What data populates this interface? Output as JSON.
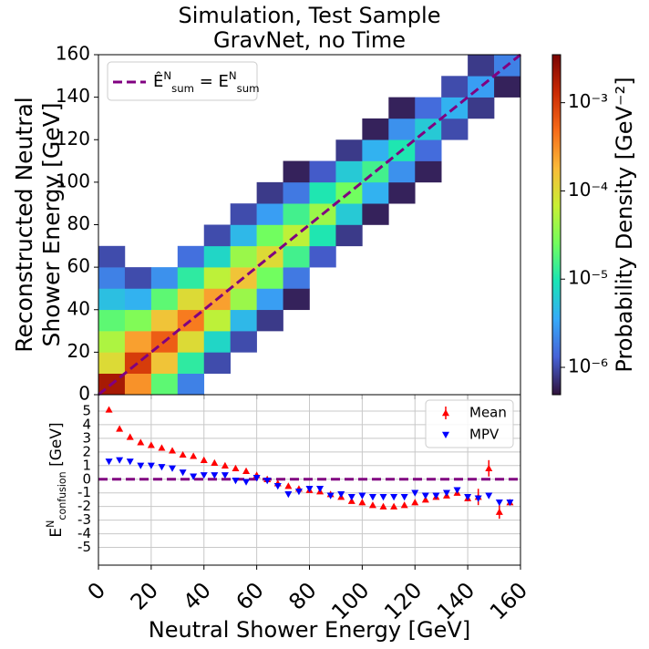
{
  "chart_data": [
    {
      "type": "heatmap",
      "title": [
        "Simulation, Test Sample",
        "GravNet, no Time"
      ],
      "ylabel": [
        "Reconstructed Neutral",
        "Shower Energy [GeV]"
      ],
      "xlim": [
        0,
        160
      ],
      "ylim": [
        0,
        160
      ],
      "xticks": [
        0,
        20,
        40,
        60,
        80,
        100,
        120,
        140,
        160
      ],
      "yticks": [
        0,
        20,
        40,
        60,
        80,
        100,
        120,
        140,
        160
      ],
      "x_bins": [
        0,
        10,
        20,
        30,
        40,
        50,
        60,
        70,
        80,
        90,
        100,
        110,
        120,
        130,
        140,
        150,
        160
      ],
      "y_bins": [
        0,
        10,
        20,
        30,
        40,
        50,
        60,
        70,
        80,
        90,
        100,
        110,
        120,
        130,
        140,
        150,
        160
      ],
      "z": [
        [
          0.002,
          0.0003,
          2e-05,
          2e-06,
          null,
          null,
          null,
          null,
          null,
          null,
          null,
          null,
          null,
          null,
          null,
          null
        ],
        [
          0.0001,
          0.001,
          0.00015,
          1.2e-05,
          1e-06,
          null,
          null,
          null,
          null,
          null,
          null,
          null,
          null,
          null,
          null,
          null
        ],
        [
          5e-05,
          0.00025,
          0.0006,
          0.0001,
          7.5e-06,
          1e-06,
          null,
          null,
          null,
          null,
          null,
          null,
          null,
          null,
          null,
          null
        ],
        [
          2e-05,
          3e-05,
          0.00015,
          0.0004,
          6e-05,
          4.5e-06,
          8e-07,
          null,
          null,
          null,
          null,
          null,
          null,
          null,
          null,
          null
        ],
        [
          5e-06,
          4e-06,
          2e-05,
          0.0001,
          0.00025,
          4e-05,
          3e-06,
          6e-07,
          null,
          null,
          null,
          null,
          null,
          null,
          null,
          null
        ],
        [
          2e-06,
          1e-06,
          2.5e-06,
          1.2e-05,
          6e-05,
          0.00015,
          2.5e-05,
          1.8e-06,
          null,
          null,
          null,
          null,
          null,
          null,
          null,
          null
        ],
        [
          1e-06,
          null,
          null,
          1.6e-06,
          7.5e-06,
          4e-05,
          0.0001,
          1.5e-05,
          1.2e-06,
          null,
          null,
          null,
          null,
          null,
          null,
          null
        ],
        [
          null,
          null,
          null,
          null,
          1e-06,
          4.5e-06,
          2.5e-05,
          6e-05,
          1e-05,
          8e-07,
          null,
          null,
          null,
          null,
          null,
          null
        ],
        [
          null,
          null,
          null,
          null,
          null,
          1e-06,
          3e-06,
          1.5e-05,
          4e-05,
          6e-06,
          6e-07,
          null,
          null,
          null,
          null,
          null
        ],
        [
          null,
          null,
          null,
          null,
          null,
          null,
          8e-07,
          1.8e-06,
          1e-05,
          2.5e-05,
          4e-06,
          6e-07,
          null,
          null,
          null,
          null
        ],
        [
          null,
          null,
          null,
          null,
          null,
          null,
          null,
          6e-07,
          1.2e-06,
          6e-06,
          1.5e-05,
          2.5e-06,
          6e-07,
          null,
          null,
          null
        ],
        [
          null,
          null,
          null,
          null,
          null,
          null,
          null,
          null,
          null,
          8e-07,
          4e-06,
          1e-05,
          1.5e-06,
          null,
          null,
          null
        ],
        [
          null,
          null,
          null,
          null,
          null,
          null,
          null,
          null,
          null,
          null,
          6e-07,
          2.5e-06,
          6e-06,
          1e-06,
          null,
          null
        ],
        [
          null,
          null,
          null,
          null,
          null,
          null,
          null,
          null,
          null,
          null,
          null,
          6e-07,
          1.5e-06,
          4e-06,
          8e-07,
          null
        ],
        [
          null,
          null,
          null,
          null,
          null,
          null,
          null,
          null,
          null,
          null,
          null,
          null,
          null,
          1e-06,
          3e-06,
          6e-07
        ],
        [
          null,
          null,
          null,
          null,
          null,
          null,
          null,
          null,
          null,
          null,
          null,
          null,
          null,
          null,
          8e-07,
          2e-06
        ]
      ],
      "zlim": [
        4.9e-07,
        0.0035
      ],
      "zscale": "log",
      "zticks": [
        {
          "value": 1e-06,
          "label": "10⁻⁶"
        },
        {
          "value": 1e-05,
          "label": "10⁻⁵"
        },
        {
          "value": 0.0001,
          "label": "10⁻⁴"
        },
        {
          "value": 0.001,
          "label": "10⁻³"
        }
      ],
      "zlabel": "Probability Density [GeV⁻²]",
      "colormap": [
        "#30123b",
        "#4662d7",
        "#36aaf9",
        "#1ae4b6",
        "#72fe5e",
        "#c8ef34",
        "#faba39",
        "#f66b19",
        "#ca2a04",
        "#7a0403"
      ],
      "series": [
        {
          "name_parts": [
            {
              "text": "Ê",
              "script": "base"
            },
            {
              "text": "N",
              "script": "sup"
            },
            {
              "text": "sum",
              "script": "sub"
            },
            {
              "text": " = E",
              "script": "base"
            },
            {
              "text": "N",
              "script": "sup"
            },
            {
              "text": "sum",
              "script": "sub"
            }
          ],
          "color": "#800080",
          "style": "dashed",
          "x": [
            0,
            160
          ],
          "values": [
            0,
            160
          ]
        }
      ],
      "legend": "upper left"
    },
    {
      "type": "scatter",
      "ylabel_parts": [
        {
          "text": "E",
          "script": "base"
        },
        {
          "text": "N",
          "script": "sup"
        },
        {
          "text": "confusion",
          "script": "sub"
        },
        {
          "text": " [GeV]",
          "script": "base"
        }
      ],
      "xlabel": "Neutral Shower Energy [GeV]",
      "xlim": [
        0,
        160
      ],
      "ylim": [
        -6.3,
        6.2
      ],
      "xticks": [
        0,
        20,
        40,
        60,
        80,
        100,
        120,
        140,
        160
      ],
      "yticks": [
        -5,
        -4,
        -3,
        -2,
        -1,
        0,
        1,
        2,
        3,
        4,
        5
      ],
      "grid": true,
      "legend": "upper right",
      "hline": {
        "value": 0,
        "color": "#800080",
        "style": "dashed"
      },
      "x": [
        4,
        8,
        12,
        16,
        20,
        24,
        28,
        32,
        36,
        40,
        44,
        48,
        52,
        56,
        60,
        64,
        68,
        72,
        76,
        80,
        84,
        88,
        92,
        96,
        100,
        104,
        108,
        112,
        116,
        120,
        124,
        128,
        132,
        136,
        140,
        144,
        148,
        152,
        156
      ],
      "series": [
        {
          "name": "Mean",
          "color": "#ff0000",
          "marker": "triangle-up",
          "values": [
            5.1,
            3.7,
            3.1,
            2.7,
            2.5,
            2.3,
            2.1,
            1.8,
            1.7,
            1.4,
            1.2,
            1.0,
            0.8,
            0.6,
            0.3,
            0,
            -0.3,
            -0.5,
            -0.7,
            -0.8,
            -0.9,
            -1.1,
            -1.3,
            -1.6,
            -1.7,
            -1.9,
            -2.0,
            -2.0,
            -1.9,
            -1.7,
            -1.5,
            -1.3,
            -1.2,
            -1.0,
            -1.4,
            -1.3,
            0.8,
            -2.4,
            -1.7
          ],
          "errors": [
            0.1,
            0.05,
            0.05,
            0.05,
            0.05,
            0.05,
            0.05,
            0.05,
            0.05,
            0.05,
            0.05,
            0.05,
            0.05,
            0.05,
            0.05,
            0.05,
            0.05,
            0.05,
            0.05,
            0.05,
            0.05,
            0.05,
            0.05,
            0.05,
            0.05,
            0.05,
            0.05,
            0.05,
            0.05,
            0.05,
            0.05,
            0.05,
            0.1,
            0.1,
            0.2,
            0.6,
            0.6,
            0.5,
            0.1
          ]
        },
        {
          "name": "MPV",
          "color": "#0000ff",
          "marker": "triangle-down",
          "values": [
            1.3,
            1.4,
            1.3,
            1.0,
            1.0,
            0.9,
            0.8,
            0.5,
            0.2,
            0.3,
            0.3,
            0.3,
            -0.1,
            -0.2,
            0.1,
            -0.1,
            -0.5,
            -1.1,
            -0.9,
            -0.7,
            -0.7,
            -1.2,
            -1.1,
            -1.3,
            -1.2,
            -1.3,
            -1.3,
            -1.3,
            -1.3,
            -1.0,
            -1.2,
            -1.2,
            -1.0,
            -0.8,
            -1.3,
            -1.4,
            -1.2,
            -1.7,
            -1.7
          ]
        }
      ]
    }
  ]
}
